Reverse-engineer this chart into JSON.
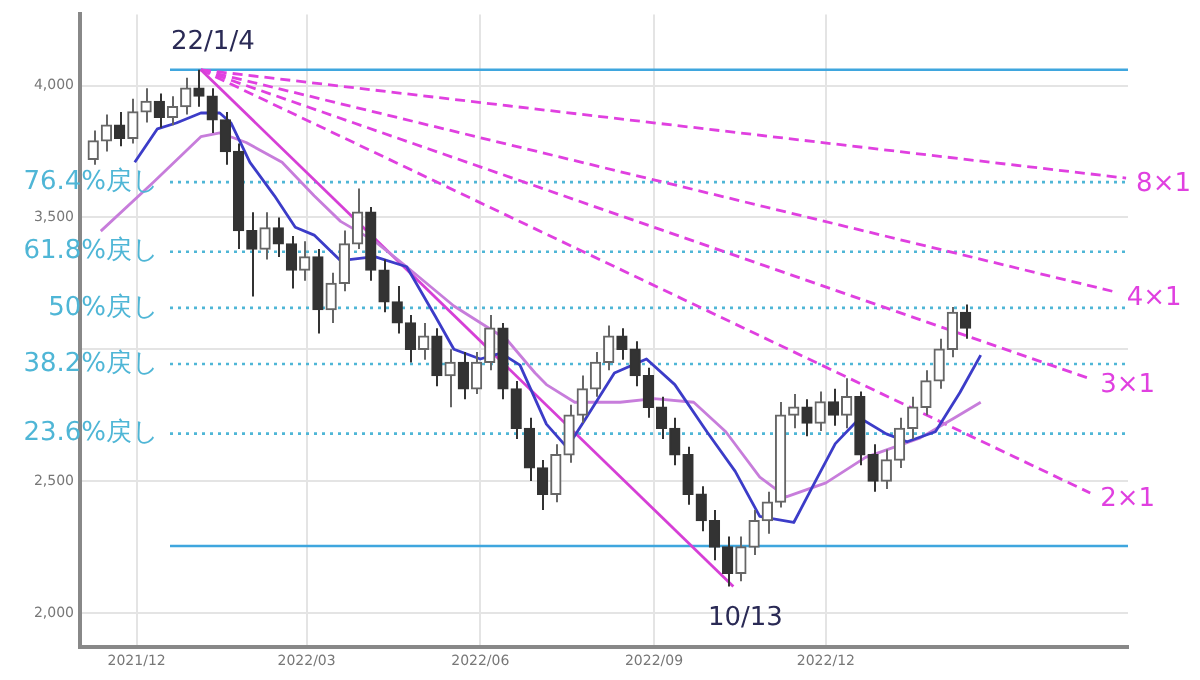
{
  "chart_data": {
    "type": "candlestick",
    "colors": [
      "#666666",
      "#666666",
      "#333333",
      "#666666",
      "#666666",
      "#333333",
      "#666666",
      "#666666",
      "#333333",
      "#333333",
      "#333333",
      "#333333",
      "#333333",
      "#666666",
      "#333333",
      "#333333",
      "#666666",
      "#333333",
      "#666666",
      "#666666",
      "#666666",
      "#333333",
      "#333333",
      "#333333",
      "#333333",
      "#666666",
      "#333333",
      "#666666",
      "#333333",
      "#666666",
      "#666666",
      "#333333",
      "#333333",
      "#333333",
      "#333333",
      "#666666",
      "#666666",
      "#666666",
      "#666666",
      "#666666",
      "#333333",
      "#333333",
      "#333333",
      "#333333",
      "#333333",
      "#333333",
      "#333333",
      "#333333",
      "#333333",
      "#666666",
      "#666666",
      "#666666",
      "#666666",
      "#666666",
      "#333333",
      "#666666",
      "#333333",
      "#666666",
      "#333333",
      "#333333",
      "#666666",
      "#666666",
      "#666666",
      "#666666",
      "#666666",
      "#666666",
      "#333333"
    ],
    "x": [
      "2021-11-08",
      "2021-11-15",
      "2021-11-22",
      "2021-11-29",
      "2021-12-06",
      "2021-12-13",
      "2021-12-20",
      "2021-12-27",
      "2022-01-03",
      "2022-01-10",
      "2022-01-17",
      "2022-01-24",
      "2022-01-31",
      "2022-02-07",
      "2022-02-14",
      "2022-02-21",
      "2022-02-28",
      "2022-03-07",
      "2022-03-14",
      "2022-03-21",
      "2022-03-28",
      "2022-04-04",
      "2022-04-11",
      "2022-04-18",
      "2022-04-25",
      "2022-05-02",
      "2022-05-09",
      "2022-05-16",
      "2022-05-23",
      "2022-05-30",
      "2022-06-06",
      "2022-06-13",
      "2022-06-20",
      "2022-06-27",
      "2022-07-04",
      "2022-07-11",
      "2022-07-18",
      "2022-07-25",
      "2022-08-01",
      "2022-08-08",
      "2022-08-15",
      "2022-08-22",
      "2022-08-29",
      "2022-09-05",
      "2022-09-12",
      "2022-09-19",
      "2022-09-26",
      "2022-10-03",
      "2022-10-10",
      "2022-10-17",
      "2022-10-24",
      "2022-10-31",
      "2022-11-07",
      "2022-11-14",
      "2022-11-21",
      "2022-11-28",
      "2022-12-05",
      "2022-12-12",
      "2022-12-19",
      "2022-12-26",
      "2023-01-02",
      "2023-01-09",
      "2023-01-16",
      "2023-01-23",
      "2023-01-30",
      "2023-02-06",
      "2023-02-13"
    ],
    "ohlc": [
      [
        3720,
        3830,
        3700,
        3790
      ],
      [
        3790,
        3890,
        3750,
        3850
      ],
      [
        3850,
        3900,
        3770,
        3800
      ],
      [
        3800,
        3950,
        3780,
        3900
      ],
      [
        3900,
        3990,
        3860,
        3940
      ],
      [
        3940,
        3970,
        3840,
        3880
      ],
      [
        3880,
        3960,
        3850,
        3920
      ],
      [
        3920,
        4030,
        3890,
        3990
      ],
      [
        3990,
        4060,
        3920,
        3960
      ],
      [
        3960,
        3990,
        3820,
        3870
      ],
      [
        3870,
        3900,
        3700,
        3750
      ],
      [
        3750,
        3780,
        3380,
        3450
      ],
      [
        3450,
        3520,
        3200,
        3380
      ],
      [
        3380,
        3520,
        3340,
        3460
      ],
      [
        3460,
        3500,
        3350,
        3400
      ],
      [
        3400,
        3430,
        3230,
        3300
      ],
      [
        3300,
        3410,
        3260,
        3350
      ],
      [
        3350,
        3380,
        3060,
        3150
      ],
      [
        3150,
        3290,
        3100,
        3250
      ],
      [
        3250,
        3450,
        3220,
        3400
      ],
      [
        3400,
        3610,
        3380,
        3520
      ],
      [
        3520,
        3540,
        3260,
        3300
      ],
      [
        3300,
        3340,
        3140,
        3180
      ],
      [
        3180,
        3240,
        3060,
        3100
      ],
      [
        3100,
        3130,
        2950,
        3000
      ],
      [
        3000,
        3100,
        2960,
        3050
      ],
      [
        3050,
        3080,
        2860,
        2900
      ],
      [
        2900,
        3000,
        2780,
        2950
      ],
      [
        2950,
        2990,
        2810,
        2850
      ],
      [
        2850,
        2990,
        2830,
        2950
      ],
      [
        2950,
        3130,
        2920,
        3080
      ],
      [
        3080,
        3100,
        2810,
        2850
      ],
      [
        2850,
        2880,
        2660,
        2700
      ],
      [
        2700,
        2740,
        2500,
        2550
      ],
      [
        2550,
        2580,
        2390,
        2450
      ],
      [
        2450,
        2640,
        2420,
        2600
      ],
      [
        2600,
        2790,
        2570,
        2750
      ],
      [
        2750,
        2900,
        2720,
        2850
      ],
      [
        2850,
        2990,
        2820,
        2950
      ],
      [
        2950,
        3090,
        2920,
        3050
      ],
      [
        3050,
        3080,
        2960,
        3000
      ],
      [
        3000,
        3030,
        2860,
        2900
      ],
      [
        2900,
        2930,
        2740,
        2780
      ],
      [
        2780,
        2820,
        2660,
        2700
      ],
      [
        2700,
        2740,
        2560,
        2600
      ],
      [
        2600,
        2630,
        2410,
        2450
      ],
      [
        2450,
        2480,
        2310,
        2350
      ],
      [
        2350,
        2390,
        2200,
        2250
      ],
      [
        2250,
        2290,
        2100,
        2150
      ],
      [
        2150,
        2290,
        2120,
        2250
      ],
      [
        2250,
        2390,
        2220,
        2350
      ],
      [
        2350,
        2460,
        2300,
        2420
      ],
      [
        2420,
        2800,
        2400,
        2750
      ],
      [
        2750,
        2830,
        2700,
        2780
      ],
      [
        2780,
        2810,
        2670,
        2720
      ],
      [
        2720,
        2840,
        2690,
        2800
      ],
      [
        2800,
        2850,
        2710,
        2750
      ],
      [
        2750,
        2890,
        2700,
        2820
      ],
      [
        2820,
        2840,
        2560,
        2600
      ],
      [
        2600,
        2640,
        2460,
        2500
      ],
      [
        2500,
        2620,
        2470,
        2580
      ],
      [
        2580,
        2740,
        2550,
        2700
      ],
      [
        2700,
        2820,
        2660,
        2780
      ],
      [
        2780,
        2920,
        2750,
        2880
      ],
      [
        2880,
        3040,
        2850,
        3000
      ],
      [
        3000,
        3160,
        2970,
        3140
      ],
      [
        3140,
        3170,
        3040,
        3080
      ]
    ],
    "series": [
      {
        "type": "line",
        "color": "#3c3cc8",
        "line_style": "solid",
        "x": [
          "2021-11-30",
          "2021-12-12",
          "2021-12-22",
          "2022-01-04",
          "2022-01-14",
          "2022-01-20",
          "2022-01-30",
          "2022-02-12",
          "2022-02-23",
          "2022-03-05",
          "2022-03-19",
          "2022-04-06",
          "2022-04-23",
          "2022-05-08",
          "2022-05-18",
          "2022-06-01",
          "2022-06-12",
          "2022-06-22",
          "2022-07-06",
          "2022-07-17",
          "2022-07-27",
          "2022-08-11",
          "2022-08-28",
          "2022-09-12",
          "2022-09-29",
          "2022-10-14",
          "2022-10-27",
          "2022-11-14",
          "2022-11-25",
          "2022-12-06",
          "2022-12-19",
          "2023-01-02",
          "2023-01-13",
          "2023-01-28",
          "2023-02-10",
          "2023-02-21"
        ],
        "values": [
          3709,
          3836,
          3858,
          3896,
          3896,
          3858,
          3709,
          3582,
          3463,
          3433,
          3336,
          3351,
          3313,
          3127,
          3000,
          2963,
          2985,
          2940,
          2716,
          2627,
          2739,
          2910,
          2963,
          2866,
          2687,
          2537,
          2366,
          2343,
          2493,
          2642,
          2739,
          2679,
          2649,
          2687,
          2836,
          2978
        ]
      },
      {
        "type": "line",
        "color": "#c77ddb",
        "line_style": "solid",
        "x": [
          "2021-11-12",
          "2021-12-10",
          "2022-01-04",
          "2022-01-14",
          "2022-01-28",
          "2022-02-16",
          "2022-03-05",
          "2022-03-19",
          "2022-04-06",
          "2022-04-23",
          "2022-05-18",
          "2022-06-15",
          "2022-06-30",
          "2022-07-06",
          "2022-07-21",
          "2022-08-14",
          "2022-09-01",
          "2022-09-22",
          "2022-10-09",
          "2022-10-27",
          "2022-11-10",
          "2022-12-01",
          "2022-12-22",
          "2023-01-20",
          "2023-02-07",
          "2023-02-21"
        ],
        "values": [
          3448,
          3634,
          3806,
          3821,
          3784,
          3709,
          3582,
          3485,
          3410,
          3313,
          3164,
          3037,
          2910,
          2866,
          2799,
          2799,
          2813,
          2799,
          2687,
          2515,
          2440,
          2493,
          2590,
          2664,
          2739,
          2799
        ]
      },
      {
        "type": "line",
        "color": "#d63fd6",
        "line_style": "solid",
        "x": [
          "2022-01-04",
          "2022-10-13"
        ],
        "values": [
          4060,
          2100
        ]
      },
      {
        "type": "line",
        "name": "2×1",
        "color": "#e040e0",
        "line_style": "dashed",
        "x": [
          "2022-01-04",
          "2023-04-20"
        ],
        "values": [
          4060,
          2455
        ]
      },
      {
        "type": "line",
        "name": "3×1",
        "color": "#e040e0",
        "line_style": "dashed",
        "x": [
          "2022-01-04",
          "2023-04-20"
        ],
        "values": [
          4060,
          2888
        ]
      },
      {
        "type": "line",
        "name": "4×1",
        "color": "#e040e0",
        "line_style": "dashed",
        "x": [
          "2022-01-04",
          "2023-05-04"
        ],
        "values": [
          4060,
          3216
        ]
      },
      {
        "type": "line",
        "name": "8×1",
        "color": "#e040e0",
        "line_style": "dashed",
        "x": [
          "2022-01-04",
          "2023-05-09"
        ],
        "values": [
          4060,
          3649
        ]
      }
    ],
    "ref_lines": [
      {
        "axis": "y",
        "value": 4060,
        "label": null,
        "color": "#3fa6de",
        "line_style": "solid"
      },
      {
        "axis": "y",
        "value": 3634,
        "label": "76.4%戻し",
        "color": "#4fb6d6",
        "line_style": "dotted"
      },
      {
        "axis": "y",
        "value": 3370,
        "label": "61.8%戻し",
        "color": "#4fb6d6",
        "line_style": "dotted"
      },
      {
        "axis": "y",
        "value": 3157,
        "label": "50%戻し",
        "color": "#4fb6d6",
        "line_style": "dotted"
      },
      {
        "axis": "y",
        "value": 2944,
        "label": "38.2%戻し",
        "color": "#4fb6d6",
        "line_style": "dotted"
      },
      {
        "axis": "y",
        "value": 2680,
        "label": "23.6%戻し",
        "color": "#4fb6d6",
        "line_style": "dotted"
      },
      {
        "axis": "y",
        "value": 2254,
        "label": null,
        "color": "#3fa6de",
        "line_style": "solid"
      }
    ],
    "annotations": [
      {
        "text": "22/1/4",
        "x": "2022-01-04",
        "y": 4060
      },
      {
        "text": "10/13",
        "x": "2022-10-13",
        "y": 2100
      }
    ],
    "xlim": [
      "2021-11-01",
      "2023-05-10"
    ],
    "xticks": [
      {
        "value": "2021-12",
        "label": "2021/12"
      },
      {
        "value": "2022-03",
        "label": "2022/03"
      },
      {
        "value": "2022-06",
        "label": "2022/06"
      },
      {
        "value": "2022-09",
        "label": "2022/09"
      },
      {
        "value": "2022-12",
        "label": "2022/12"
      }
    ],
    "ylim": [
      1870,
      4270
    ],
    "yticks": [
      {
        "value": 2000,
        "label": "2,000"
      },
      {
        "value": 2500,
        "label": "2,500"
      },
      {
        "value": 3000,
        "label": null
      },
      {
        "value": 3500,
        "label": "3,500"
      },
      {
        "value": 4000,
        "label": "4,000"
      }
    ],
    "grid": true
  }
}
